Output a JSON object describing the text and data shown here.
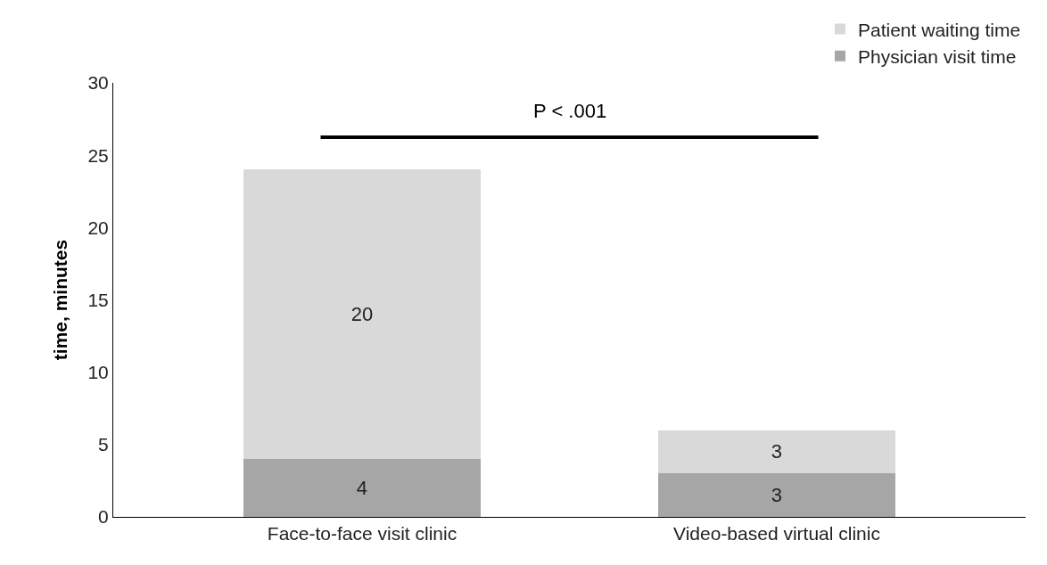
{
  "chart_data": {
    "type": "bar",
    "stacked": true,
    "categories": [
      "Face-to-face visit clinic",
      "Video-based virtual clinic"
    ],
    "ylabel": "time, minutes",
    "series": [
      {
        "name": "Physician visit time",
        "color": "#a6a6a6",
        "values": [
          4,
          3
        ]
      },
      {
        "name": "Patient waiting time",
        "color": "#d9d9d9",
        "values": [
          20,
          3
        ]
      }
    ],
    "ylim": [
      0,
      30
    ],
    "yticks": [
      0,
      5,
      10,
      15,
      20,
      25,
      30
    ],
    "data_labels": true,
    "legend": "top right",
    "grid": false,
    "annotations": [
      "P < .001"
    ]
  }
}
